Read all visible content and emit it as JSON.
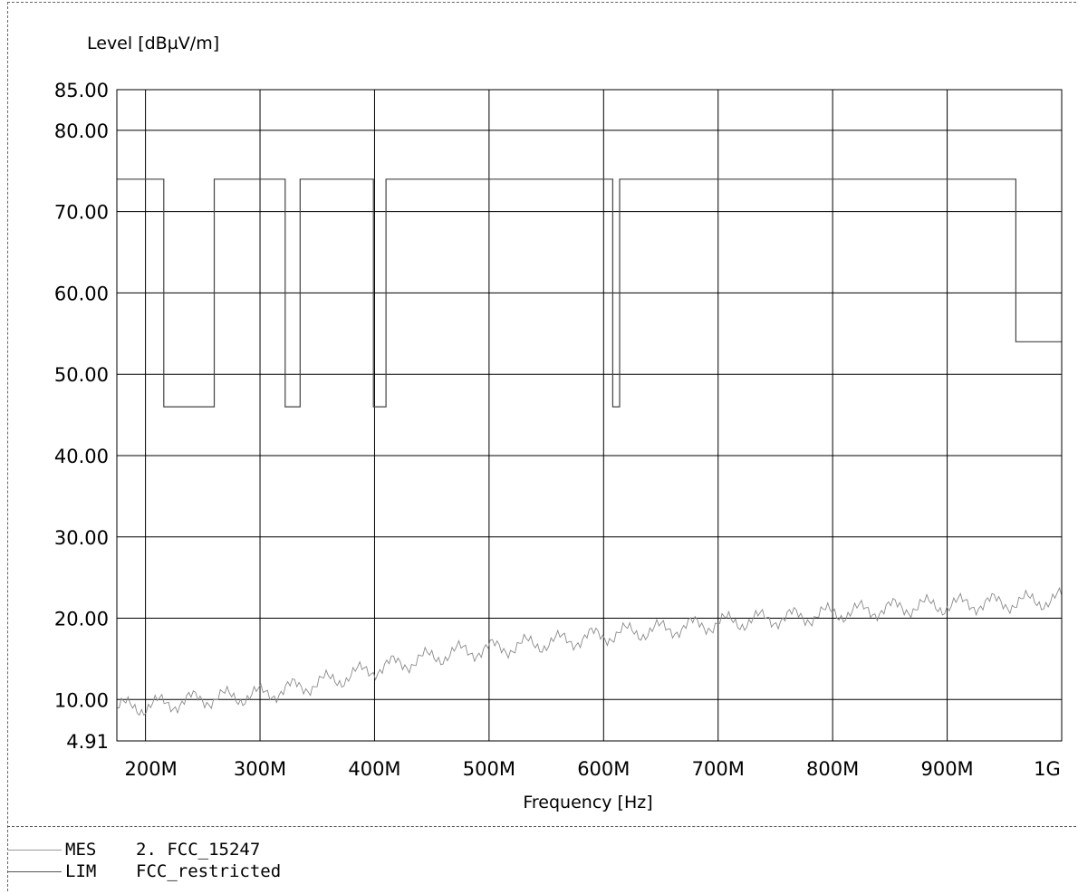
{
  "chart_data": {
    "type": "line",
    "ylabel": "Level [dBµV/m]",
    "xlabel": "Frequency [Hz]",
    "ylim": [
      4.91,
      85.0
    ],
    "xlim": [
      175000000,
      1000000000
    ],
    "y_ticks": [
      {
        "value": 85.0,
        "label": "85.00"
      },
      {
        "value": 80.0,
        "label": "80.00"
      },
      {
        "value": 70.0,
        "label": "70.00"
      },
      {
        "value": 60.0,
        "label": "60.00"
      },
      {
        "value": 50.0,
        "label": "50.00"
      },
      {
        "value": 40.0,
        "label": "40.00"
      },
      {
        "value": 30.0,
        "label": "30.00"
      },
      {
        "value": 20.0,
        "label": "20.00"
      },
      {
        "value": 10.0,
        "label": "10.00"
      },
      {
        "value": 4.91,
        "label": "4.91"
      }
    ],
    "x_ticks": [
      {
        "value": 200000000,
        "label": "200M"
      },
      {
        "value": 300000000,
        "label": "300M"
      },
      {
        "value": 400000000,
        "label": "400M"
      },
      {
        "value": 500000000,
        "label": "500M"
      },
      {
        "value": 600000000,
        "label": "600M"
      },
      {
        "value": 700000000,
        "label": "700M"
      },
      {
        "value": 800000000,
        "label": "800M"
      },
      {
        "value": 900000000,
        "label": "900M"
      },
      {
        "value": 1000000000,
        "label": "1G"
      }
    ],
    "grid": true,
    "legend_position": "bottom-left",
    "series": [
      {
        "name": "FCC_restricted",
        "color": "#444444",
        "step": true,
        "x": [
          175000000,
          216000000,
          216000000,
          260000000,
          260000000,
          322000000,
          322000000,
          335000000,
          335000000,
          399000000,
          399000000,
          410000000,
          410000000,
          608000000,
          608000000,
          614000000,
          614000000,
          960000000,
          960000000,
          1000000000
        ],
        "y": [
          74.0,
          74.0,
          46.0,
          46.0,
          74.0,
          74.0,
          46.0,
          46.0,
          74.0,
          74.0,
          46.0,
          46.0,
          74.0,
          74.0,
          46.0,
          46.0,
          74.0,
          74.0,
          54.0,
          54.0
        ]
      },
      {
        "name": "2. FCC_15247",
        "color": "#8a8a8a",
        "step": false,
        "x": [
          175000000,
          200000000,
          225000000,
          250000000,
          275000000,
          300000000,
          325000000,
          350000000,
          375000000,
          400000000,
          425000000,
          450000000,
          475000000,
          500000000,
          525000000,
          550000000,
          575000000,
          600000000,
          625000000,
          650000000,
          675000000,
          700000000,
          725000000,
          750000000,
          775000000,
          800000000,
          825000000,
          850000000,
          875000000,
          900000000,
          925000000,
          950000000,
          975000000,
          1000000000
        ],
        "y": [
          9.0,
          9.2,
          9.6,
          10.1,
          10.3,
          10.6,
          11.3,
          12.0,
          12.8,
          13.8,
          14.5,
          15.2,
          15.9,
          16.2,
          16.6,
          17.0,
          17.4,
          17.9,
          18.3,
          18.6,
          19.0,
          19.4,
          19.7,
          20.0,
          20.2,
          20.6,
          20.9,
          21.2,
          21.5,
          21.6,
          21.8,
          21.9,
          22.1,
          22.4
        ]
      }
    ]
  },
  "legend": [
    {
      "code": "MES",
      "text": "2. FCC_15247"
    },
    {
      "code": "LIM",
      "text": "FCC_restricted"
    }
  ]
}
